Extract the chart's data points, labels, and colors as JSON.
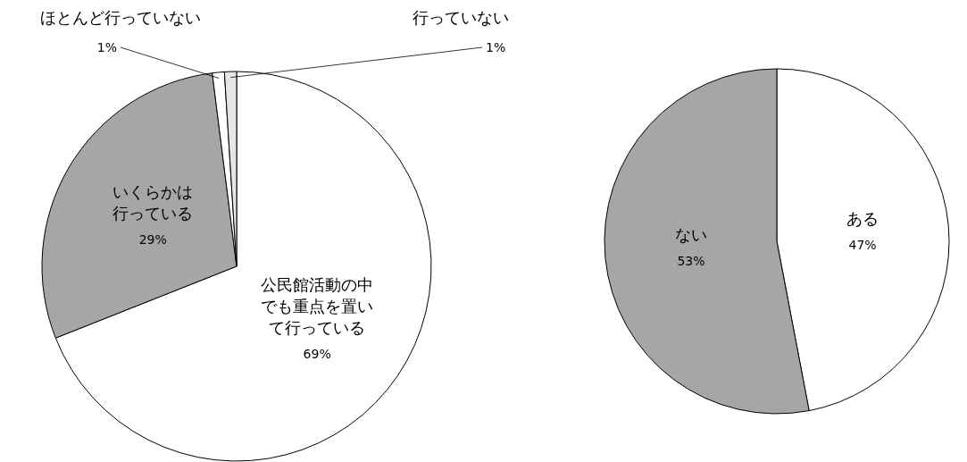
{
  "chart_data": [
    {
      "type": "pie",
      "categories": [
        "公民館活動の中でも重点を置いて行っている",
        "いくらかは行っている",
        "ほとんど行っていない",
        "行っていない"
      ],
      "values": [
        69,
        29,
        1,
        1
      ],
      "value_labels": [
        "69%",
        "29%",
        "1%",
        "1%"
      ],
      "colors": [
        "#ffffff",
        "#a6a6a6",
        "#ffffff",
        "#e6e6e6"
      ]
    },
    {
      "type": "pie",
      "categories": [
        "ある",
        "ない"
      ],
      "values": [
        47,
        53
      ],
      "value_labels": [
        "47%",
        "53%"
      ],
      "colors": [
        "#ffffff",
        "#a6a6a6"
      ]
    }
  ]
}
